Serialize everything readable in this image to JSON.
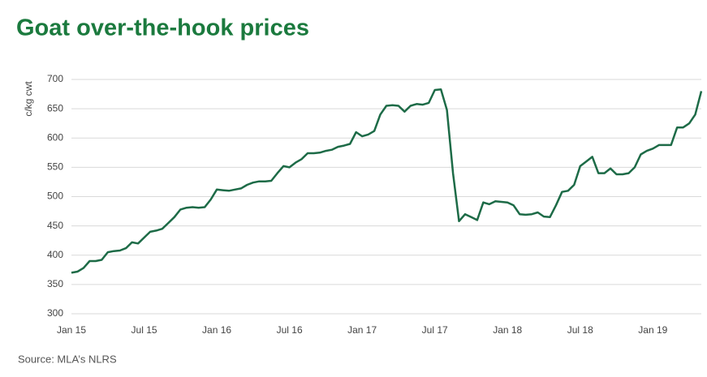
{
  "chart_data": {
    "type": "line",
    "title": "Goat over-the-hook prices",
    "y_label": "c/kg cwt",
    "source": "Source: MLA’s NLRS",
    "categories": [
      "Jan 15",
      null,
      null,
      null,
      null,
      null,
      null,
      null,
      null,
      null,
      null,
      null,
      "Jul 15",
      null,
      null,
      null,
      null,
      null,
      null,
      null,
      null,
      null,
      null,
      null,
      "Jan 16",
      null,
      null,
      null,
      null,
      null,
      null,
      null,
      null,
      null,
      null,
      null,
      "Jul 16",
      null,
      null,
      null,
      null,
      null,
      null,
      null,
      null,
      null,
      null,
      null,
      "Jan 17",
      null,
      null,
      null,
      null,
      null,
      null,
      null,
      null,
      null,
      null,
      null,
      "Jul 17",
      null,
      null,
      null,
      null,
      null,
      null,
      null,
      null,
      null,
      null,
      null,
      "Jan 18",
      null,
      null,
      null,
      null,
      null,
      null,
      null,
      null,
      null,
      null,
      null,
      "Jul 18",
      null,
      null,
      null,
      null,
      null,
      null,
      null,
      null,
      null,
      null,
      null,
      "Jan 19",
      null,
      null,
      null,
      null,
      null,
      null,
      null,
      null
    ],
    "series": [
      {
        "color": "#1d6b47",
        "values": [
          370,
          372,
          378,
          390,
          390,
          392,
          405,
          407,
          408,
          412,
          422,
          420,
          430,
          440,
          442,
          445,
          455,
          465,
          478,
          481,
          482,
          481,
          482,
          495,
          512,
          511,
          510,
          512,
          514,
          520,
          524,
          526,
          526,
          527,
          540,
          552,
          550,
          558,
          564,
          574,
          574,
          575,
          578,
          580,
          585,
          587,
          590,
          610,
          603,
          606,
          612,
          640,
          655,
          656,
          655,
          645,
          655,
          658,
          657,
          660,
          682,
          683,
          648,
          540,
          458,
          470,
          465,
          460,
          490,
          487,
          492,
          491,
          490,
          485,
          470,
          469,
          470,
          473,
          466,
          465,
          485,
          508,
          510,
          520,
          552,
          560,
          568,
          540,
          540,
          548,
          538,
          538,
          540,
          550,
          572,
          578,
          582,
          588,
          588,
          588,
          618,
          618,
          625,
          640,
          680
        ]
      }
    ],
    "ylim": [
      300,
      700
    ],
    "yticks": [
      300,
      350,
      400,
      450,
      500,
      550,
      600,
      650,
      700
    ],
    "grid": true
  }
}
